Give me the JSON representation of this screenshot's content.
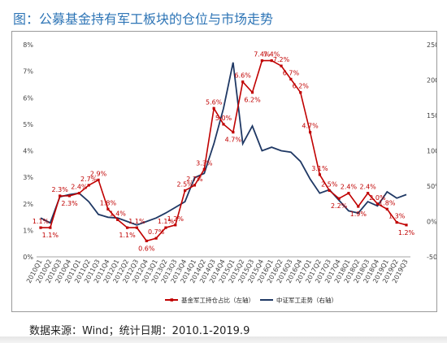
{
  "header": {
    "title": "图：公募基金持有军工板块的仓位与市场走势"
  },
  "source_note": "数据来源：Wind；统计日期：2010.1-2019.9",
  "colors": {
    "fund": "#c00000",
    "index": "#1f3864",
    "title": "#2e75b6"
  },
  "chart_data": {
    "type": "line",
    "title": "",
    "categories": [
      "2010Q1",
      "2010Q2",
      "2010Q3",
      "2010Q4",
      "2011Q1",
      "2011Q2",
      "2011Q3",
      "2011Q4",
      "2012Q1",
      "2012Q2",
      "2012Q3",
      "2012Q4",
      "2013Q1",
      "2013Q2",
      "2013Q3",
      "2013Q4",
      "2014Q1",
      "2014Q2",
      "2014Q3",
      "2014Q4",
      "2015Q1",
      "2015Q2",
      "2015Q3",
      "2015Q4",
      "2016Q1",
      "2016Q2",
      "2016Q3",
      "2016Q4",
      "2017Q1",
      "2017Q2",
      "2017Q3",
      "2017Q4",
      "2018Q1",
      "2018Q2",
      "2018Q3",
      "2018Q4",
      "2019Q1",
      "2019Q2",
      "2019Q3"
    ],
    "y_left": {
      "min": 0,
      "max": 8,
      "ticks": [
        "0%",
        "1%",
        "2%",
        "3%",
        "4%",
        "5%",
        "6%",
        "7%",
        "8%"
      ]
    },
    "y_right": {
      "min": -50,
      "max": 250,
      "ticks": [
        "-50%",
        "0%",
        "50%",
        "100%",
        "150%",
        "200%",
        "250%"
      ]
    },
    "series": [
      {
        "name": "基金军工持仓占比（左轴）",
        "axis": "left",
        "color": "#c00000",
        "values": [
          1.1,
          1.1,
          2.3,
          2.3,
          2.4,
          2.7,
          2.9,
          1.8,
          1.4,
          1.1,
          1.1,
          0.6,
          0.7,
          1.1,
          1.2,
          2.5,
          2.7,
          3.3,
          5.6,
          5.0,
          4.7,
          6.6,
          6.2,
          7.4,
          7.4,
          7.2,
          6.7,
          6.2,
          4.7,
          3.1,
          2.5,
          2.2,
          2.4,
          1.9,
          2.4,
          2.0,
          1.8,
          1.3,
          1.2
        ],
        "labels": [
          "1.1%",
          "1.1%",
          "2.3%",
          "2.3%",
          "2.4%",
          "2.7%",
          "2.9%",
          "1.8%",
          "1.4%",
          "1.1%",
          "1.1%",
          "0.6%",
          "0.7%",
          "1.1%",
          "1.2%",
          "2.5%",
          "2.7%",
          "3.3%",
          "5.6%",
          "5.0%",
          "4.7%",
          "6.6%",
          "6.2%",
          "7.4%",
          "7.4%",
          "7.2%",
          "6.7%",
          "6.2%",
          "4.7%",
          "3.1%",
          "2.5%",
          "2.2%",
          "2.4%",
          "1.9%",
          "2.4%",
          "2.0%",
          "1.8%",
          "1.3%",
          "1.2%"
        ]
      },
      {
        "name": "中证军工走势（右轴）",
        "axis": "right",
        "color": "#1f3864",
        "values": [
          5,
          -2,
          35,
          38,
          40,
          28,
          10,
          6,
          5,
          0,
          -5,
          0,
          5,
          12,
          20,
          28,
          62,
          68,
          110,
          160,
          225,
          110,
          135,
          100,
          105,
          100,
          98,
          85,
          60,
          40,
          45,
          30,
          15,
          12,
          28,
          22,
          42,
          33,
          38
        ]
      }
    ],
    "legend": {
      "position": "bottom"
    }
  }
}
